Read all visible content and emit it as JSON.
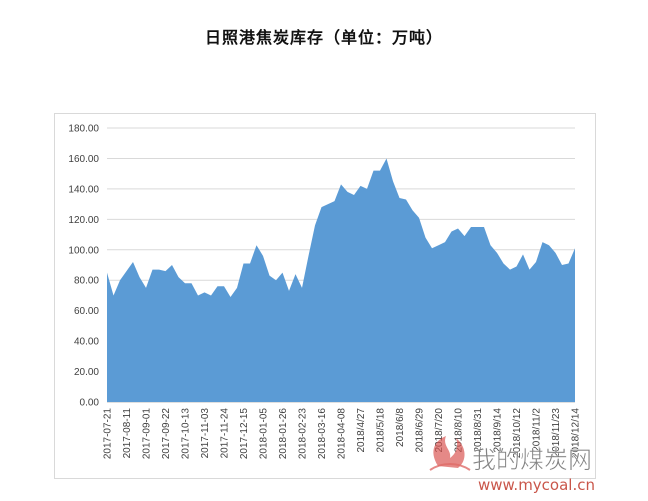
{
  "title": "日照港焦炭库存（单位：万吨）",
  "watermark": {
    "name": "我的煤炭网",
    "url": "www.mycoal.cn"
  },
  "chart_data": {
    "type": "area",
    "title": "日照港焦炭库存（单位：万吨）",
    "color": "#5b9bd5",
    "ylim": [
      0,
      180
    ],
    "yticks": [
      "0.00",
      "20.00",
      "40.00",
      "60.00",
      "80.00",
      "100.00",
      "120.00",
      "140.00",
      "160.00",
      "180.00"
    ],
    "grid": true,
    "legend": "none",
    "x_tick_labels": [
      "2017-07-21",
      "2017-08-11",
      "2017-09-01",
      "2017-09-22",
      "2017-10-13",
      "2017-11-03",
      "2017-11-24",
      "2017-12-15",
      "2018-01-05",
      "2018-01-26",
      "2018-02-23",
      "2018-03-16",
      "2018-04-08",
      "2018/4/27",
      "2018/5/18",
      "2018/6/8",
      "2018/6/29",
      "2018/7/20",
      "2018/8/10",
      "2018/8/31",
      "2018/9/14",
      "2018/10/12",
      "2018/11/2",
      "2018/11/23",
      "2018/12/14"
    ],
    "values": [
      85,
      70,
      80,
      86,
      92,
      82,
      75,
      87,
      87,
      86,
      90,
      82,
      78,
      78,
      70,
      72,
      70,
      76,
      76,
      69,
      75,
      91,
      91,
      103,
      96,
      83,
      80,
      85,
      73,
      84,
      75,
      96,
      116,
      128,
      130,
      132,
      143,
      138,
      136,
      142,
      140,
      152,
      152,
      160,
      145,
      134,
      133,
      126,
      121,
      108,
      101,
      103,
      105,
      112,
      114,
      109,
      115,
      115,
      115,
      103,
      98,
      91,
      87,
      89,
      97,
      87,
      92,
      105,
      103,
      98,
      90,
      91,
      101
    ]
  }
}
